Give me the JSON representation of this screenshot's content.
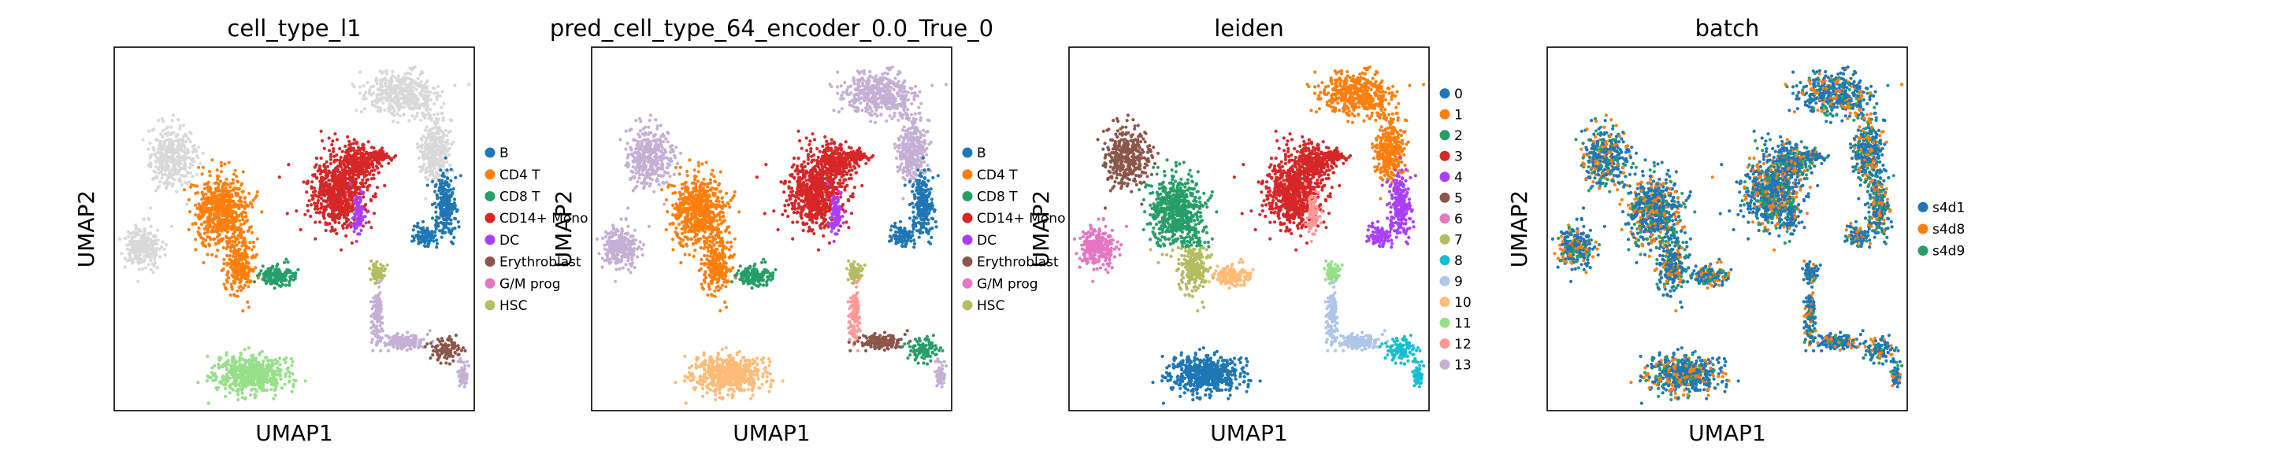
{
  "chart_data": [
    {
      "type": "scatter",
      "title": "cell_type_l1",
      "xlabel": "UMAP1",
      "ylabel": "UMAP2",
      "grid": false,
      "legend_placement": "right-outside",
      "categories": [
        {
          "name": "B",
          "color": "#1f77b4"
        },
        {
          "name": "CD4 T",
          "color": "#ff7f0e"
        },
        {
          "name": "CD8 T",
          "color": "#279e68"
        },
        {
          "name": "CD14+ Mono",
          "color": "#d62728"
        },
        {
          "name": "DC",
          "color": "#aa40fc"
        },
        {
          "name": "Erythroblast",
          "color": "#8c564b"
        },
        {
          "name": "G/M prog",
          "color": "#e377c2"
        },
        {
          "name": "HSC",
          "color": "#b5bd61"
        }
      ]
    },
    {
      "type": "scatter",
      "title": "pred_cell_type_64_encoder_0.0_True_0",
      "xlabel": "UMAP1",
      "ylabel": "UMAP2",
      "grid": false,
      "legend_placement": "right-outside",
      "categories": [
        {
          "name": "B",
          "color": "#1f77b4"
        },
        {
          "name": "CD4 T",
          "color": "#ff7f0e"
        },
        {
          "name": "CD8 T",
          "color": "#279e68"
        },
        {
          "name": "CD14+ Mono",
          "color": "#d62728"
        },
        {
          "name": "DC",
          "color": "#aa40fc"
        },
        {
          "name": "Erythroblast",
          "color": "#8c564b"
        },
        {
          "name": "G/M prog",
          "color": "#e377c2"
        },
        {
          "name": "HSC",
          "color": "#b5bd61"
        }
      ]
    },
    {
      "type": "scatter",
      "title": "leiden",
      "xlabel": "UMAP1",
      "ylabel": "UMAP2",
      "grid": false,
      "legend_placement": "right-outside",
      "categories": [
        {
          "name": "0",
          "color": "#1f77b4"
        },
        {
          "name": "1",
          "color": "#ff7f0e"
        },
        {
          "name": "2",
          "color": "#279e68"
        },
        {
          "name": "3",
          "color": "#d62728"
        },
        {
          "name": "4",
          "color": "#aa40fc"
        },
        {
          "name": "5",
          "color": "#8c564b"
        },
        {
          "name": "6",
          "color": "#e377c2"
        },
        {
          "name": "7",
          "color": "#b5bd61"
        },
        {
          "name": "8",
          "color": "#17becf"
        },
        {
          "name": "9",
          "color": "#aec7e8"
        },
        {
          "name": "10",
          "color": "#ffbb78"
        },
        {
          "name": "11",
          "color": "#98df8a"
        },
        {
          "name": "12",
          "color": "#ff9896"
        },
        {
          "name": "13",
          "color": "#c5b0d5"
        }
      ]
    },
    {
      "type": "scatter",
      "title": "batch",
      "xlabel": "UMAP1",
      "ylabel": "UMAP2",
      "grid": false,
      "legend_placement": "right-outside",
      "categories": [
        {
          "name": "s4d1",
          "color": "#1f77b4"
        },
        {
          "name": "s4d8",
          "color": "#ff7f0e"
        },
        {
          "name": "s4d9",
          "color": "#279e68"
        }
      ]
    }
  ]
}
